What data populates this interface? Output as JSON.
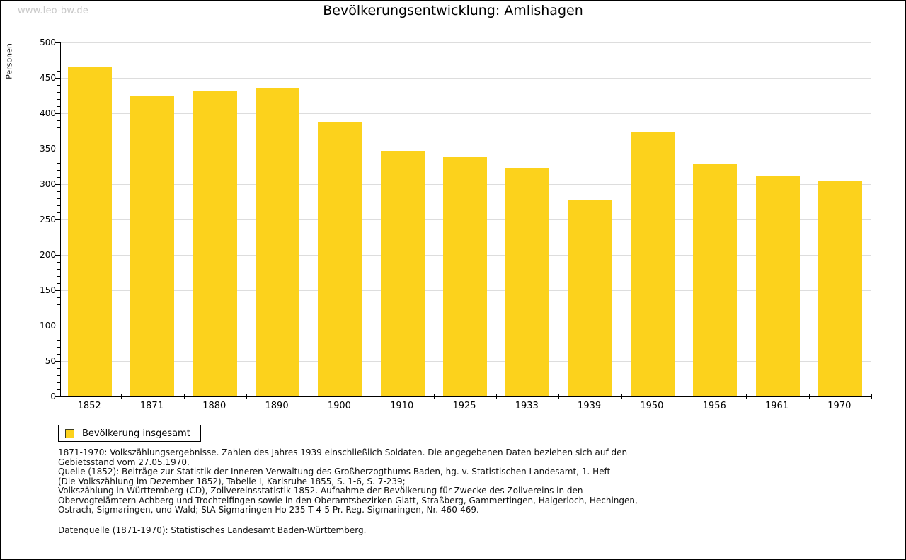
{
  "watermark": "www.leo-bw.de",
  "title": "Bevölkerungsentwicklung: Amlishagen",
  "legend": {
    "label": "Bevölkerung insgesamt",
    "swatch_color": "#FCD21C"
  },
  "chart_data": {
    "type": "bar",
    "title": "Bevölkerungsentwicklung: Amlishagen",
    "xlabel": "",
    "ylabel": "Personen",
    "categories": [
      "1852",
      "1871",
      "1880",
      "1890",
      "1900",
      "1910",
      "1925",
      "1933",
      "1939",
      "1950",
      "1956",
      "1961",
      "1970"
    ],
    "series": [
      {
        "name": "Bevölkerung insgesamt",
        "values": [
          466,
          424,
          431,
          435,
          387,
          347,
          338,
          322,
          278,
          373,
          328,
          312,
          304
        ]
      }
    ],
    "ylim": [
      0,
      500
    ],
    "ytick_major": 50,
    "ytick_minor": 10,
    "grid": true,
    "legend_position": "bottom-left",
    "bar_color": "#FCD21C",
    "gridline_color": "#DDDDDD"
  },
  "footnotes": {
    "lines": [
      "1871-1970: Volkszählungsergebnisse. Zahlen des Jahres 1939 einschließlich Soldaten. Die angegebenen Daten beziehen sich auf den",
      "Gebietsstand vom 27.05.1970.",
      "Quelle (1852): Beiträge zur Statistik der Inneren Verwaltung des Großherzogthums Baden, hg. v. Statistischen Landesamt, 1. Heft",
      "(Die Volkszählung im Dezember 1852), Tabelle I, Karlsruhe 1855, S. 1-6, S. 7-239;",
      "Volkszählung in Württemberg (CD), Zollvereinsstatistik 1852. Aufnahme der Bevölkerung für Zwecke des Zollvereins in den",
      "Obervogteiämtern Achberg und Trochtelfingen sowie in den Oberamtsbezirken Glatt, Straßberg, Gammertingen, Haigerloch, Hechingen,",
      "Ostrach, Sigmaringen, und Wald; StA Sigmaringen Ho 235 T 4-5 Pr. Reg. Sigmaringen, Nr. 460-469."
    ],
    "datasource": "Datenquelle (1871-1970): Statistisches Landesamt Baden-Württemberg."
  },
  "colors": {
    "bar": "#FCD21C",
    "gridline": "#DDDDDD",
    "axis": "#000000",
    "watermark": "#C8C8C8",
    "frame": "#000000"
  }
}
